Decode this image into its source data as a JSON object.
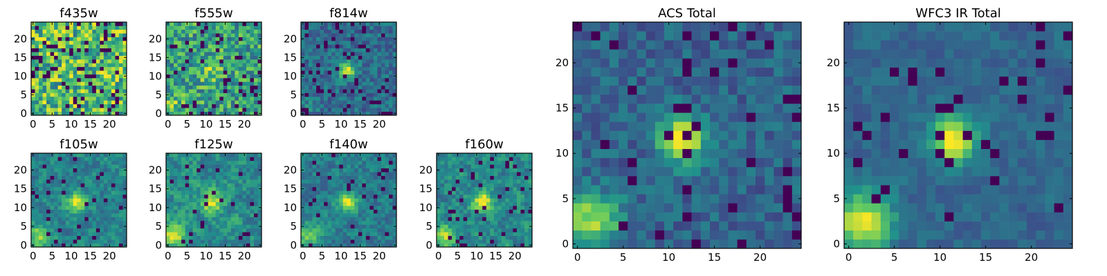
{
  "figure_title": "",
  "colormap": [
    "#440154",
    "#3b528b",
    "#21918c",
    "#5ec962",
    "#fde725"
  ],
  "frame_color": "#000000",
  "chart_data": [
    {
      "type": "heatmap",
      "title": "f435w",
      "xticks": [
        0,
        5,
        10,
        15,
        20
      ],
      "yticks": [
        0,
        5,
        10,
        15,
        20
      ],
      "xlim": [
        0,
        25
      ],
      "ylim": [
        0,
        25
      ],
      "grid_size": 25,
      "seed": 11,
      "noise": 1.0,
      "blob_peak": 0.0,
      "blob_width": 2.5,
      "blob_center": [
        11.5,
        11.5
      ],
      "bright_corner": 0.0,
      "dark_fraction": 0.12,
      "smoothing": 0
    },
    {
      "type": "heatmap",
      "title": "f555w",
      "xticks": [
        0,
        5,
        10,
        15,
        20
      ],
      "yticks": [
        0,
        5,
        10,
        15,
        20
      ],
      "xlim": [
        0,
        25
      ],
      "ylim": [
        0,
        25
      ],
      "grid_size": 25,
      "seed": 23,
      "noise": 1.0,
      "blob_peak": 0.4,
      "blob_width": 2.5,
      "blob_center": [
        11.5,
        11.5
      ],
      "bright_corner": 0.3,
      "dark_fraction": 0.08,
      "smoothing": 0
    },
    {
      "type": "heatmap",
      "title": "f814w",
      "xticks": [
        0,
        5,
        10,
        15,
        20
      ],
      "yticks": [
        0,
        5,
        10,
        15,
        20
      ],
      "xlim": [
        0,
        25
      ],
      "ylim": [
        0,
        25
      ],
      "grid_size": 25,
      "seed": 37,
      "noise": 0.8,
      "blob_peak": 1.6,
      "blob_width": 1.6,
      "blob_center": [
        11.5,
        11.5
      ],
      "bright_corner": 0.2,
      "dark_fraction": 0.07,
      "smoothing": 0
    },
    {
      "type": "heatmap",
      "title": "f105w",
      "xticks": [
        0,
        5,
        10,
        15,
        20
      ],
      "yticks": [
        0,
        5,
        10,
        15,
        20
      ],
      "xlim": [
        0,
        25
      ],
      "ylim": [
        0,
        25
      ],
      "grid_size": 25,
      "seed": 41,
      "noise": 1.0,
      "blob_peak": 1.2,
      "blob_width": 2.0,
      "blob_center": [
        11.5,
        11.5
      ],
      "bright_corner": 1.0,
      "dark_fraction": 0.05,
      "smoothing": 1
    },
    {
      "type": "heatmap",
      "title": "f125w",
      "xticks": [
        0,
        5,
        10,
        15,
        20
      ],
      "yticks": [
        0,
        5,
        10,
        15,
        20
      ],
      "xlim": [
        0,
        25
      ],
      "ylim": [
        0,
        25
      ],
      "grid_size": 25,
      "seed": 53,
      "noise": 1.0,
      "blob_peak": 1.0,
      "blob_width": 2.0,
      "blob_center": [
        11.5,
        11.5
      ],
      "bright_corner": 1.0,
      "dark_fraction": 0.05,
      "smoothing": 1
    },
    {
      "type": "heatmap",
      "title": "f140w",
      "xticks": [
        0,
        5,
        10,
        15,
        20
      ],
      "yticks": [
        0,
        5,
        10,
        15,
        20
      ],
      "xlim": [
        0,
        25
      ],
      "ylim": [
        0,
        25
      ],
      "grid_size": 25,
      "seed": 67,
      "noise": 1.0,
      "blob_peak": 1.3,
      "blob_width": 1.8,
      "blob_center": [
        11.5,
        11.5
      ],
      "bright_corner": 1.0,
      "dark_fraction": 0.05,
      "smoothing": 1
    },
    {
      "type": "heatmap",
      "title": "f160w",
      "xticks": [
        0,
        5,
        10,
        15,
        20
      ],
      "yticks": [
        0,
        5,
        10,
        15,
        20
      ],
      "xlim": [
        0,
        25
      ],
      "ylim": [
        0,
        25
      ],
      "grid_size": 25,
      "seed": 79,
      "noise": 1.0,
      "blob_peak": 1.3,
      "blob_width": 1.8,
      "blob_center": [
        11.5,
        11.5
      ],
      "bright_corner": 1.0,
      "dark_fraction": 0.06,
      "smoothing": 1
    },
    {
      "type": "heatmap",
      "title": "ACS Total",
      "xticks": [
        0,
        5,
        10,
        15,
        20
      ],
      "yticks": [
        0,
        5,
        10,
        15,
        20
      ],
      "xlim": [
        0,
        25
      ],
      "ylim": [
        0,
        25
      ],
      "grid_size": 25,
      "seed": 97,
      "noise": 0.7,
      "blob_peak": 2.2,
      "blob_width": 1.7,
      "blob_center": [
        11.5,
        11.5
      ],
      "bright_corner": 1.6,
      "dark_fraction": 0.05,
      "smoothing": 0
    },
    {
      "type": "heatmap",
      "title": "WFC3 IR Total",
      "xticks": [
        0,
        5,
        10,
        15,
        20
      ],
      "yticks": [
        0,
        5,
        10,
        15,
        20
      ],
      "xlim": [
        0,
        25
      ],
      "ylim": [
        0,
        25
      ],
      "grid_size": 25,
      "seed": 113,
      "noise": 0.7,
      "blob_peak": 2.0,
      "blob_width": 1.7,
      "blob_center": [
        11.5,
        11.5
      ],
      "bright_corner": 1.8,
      "dark_fraction": 0.05,
      "smoothing": 1
    }
  ]
}
